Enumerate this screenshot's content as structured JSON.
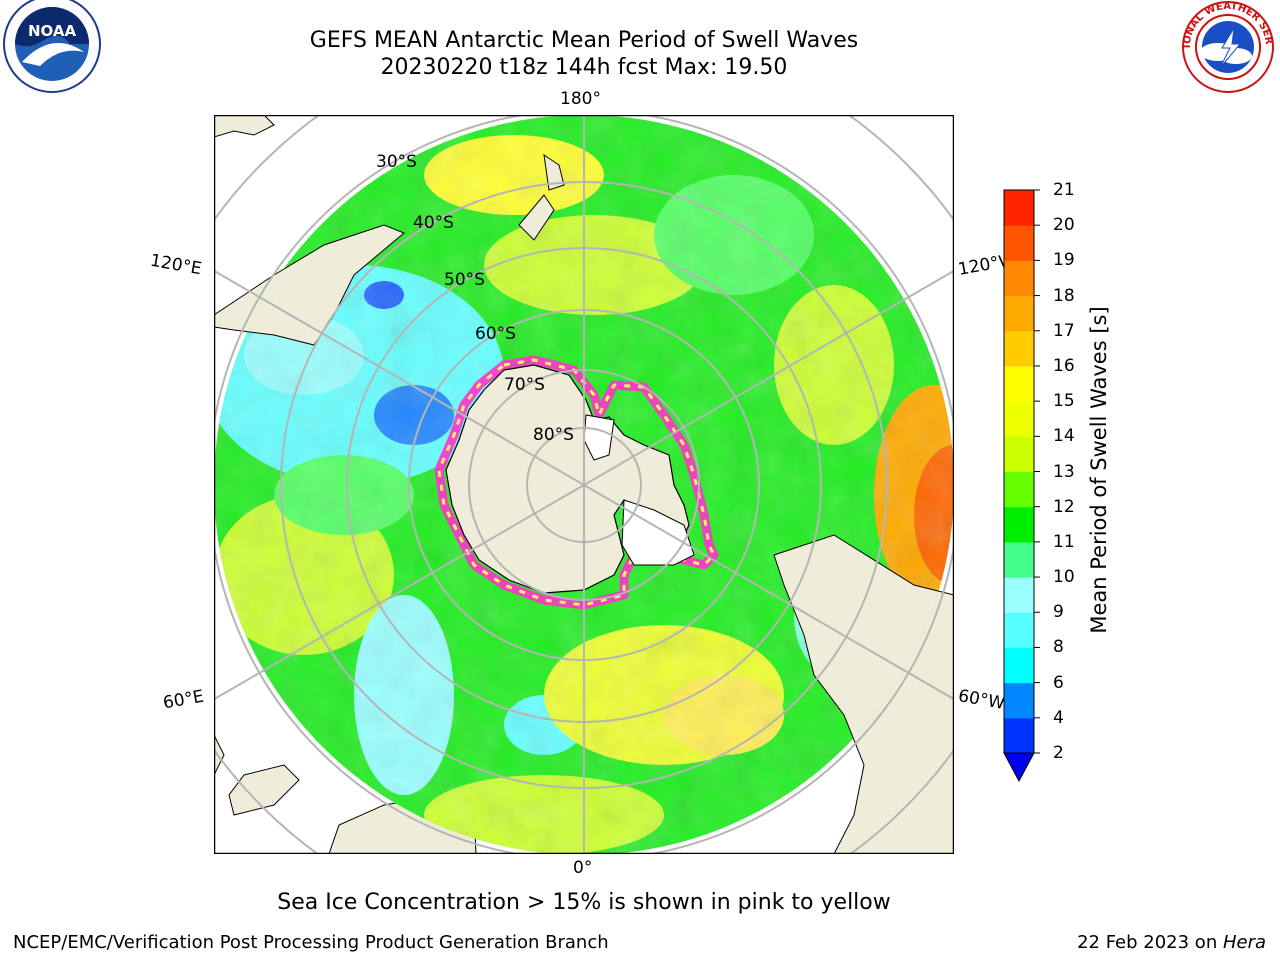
{
  "title": {
    "line1": "GEFS MEAN Antarctic Mean Period of Swell Waves",
    "line2": "20230220 t18z 144h fcst   Max: 19.50"
  },
  "map": {
    "projection": "south-polar-stereographic",
    "meridian_labels": [
      {
        "id": "lon-180",
        "text": "180°"
      },
      {
        "id": "lon-120e",
        "text": "120°E"
      },
      {
        "id": "lon-120w",
        "text": "120°W"
      },
      {
        "id": "lon-60e",
        "text": "60°E"
      },
      {
        "id": "lon-60w",
        "text": "60°W"
      },
      {
        "id": "lon-0",
        "text": "0°"
      }
    ],
    "parallel_labels": [
      "30°S",
      "40°S",
      "50°S",
      "60°S",
      "70°S",
      "80°S"
    ],
    "colors": {
      "land": "#efedd9",
      "ice": "#ffffff",
      "ice_edge": "#ff33cc",
      "grid": "#b5b5b5"
    }
  },
  "colorbar": {
    "label": "Mean Period of Swell Waves [s]",
    "ticks": [
      "2",
      "4",
      "6",
      "8",
      "9",
      "10",
      "11",
      "12",
      "13",
      "14",
      "15",
      "16",
      "17",
      "18",
      "19",
      "20",
      "21"
    ],
    "colors": [
      "#0033ff",
      "#0088ff",
      "#00ffff",
      "#55ffff",
      "#99ffff",
      "#44ff88",
      "#00ee00",
      "#66ff00",
      "#ccff00",
      "#eeff00",
      "#ffff00",
      "#ffcc00",
      "#ffaa00",
      "#ff8800",
      "#ff5500",
      "#ff2200"
    ],
    "extend_min_color": "#0000ee"
  },
  "footer_note": "Sea Ice Concentration > 15% is shown in pink to yellow",
  "credits": {
    "left": "NCEP/EMC/Verification Post Processing Product Generation Branch",
    "right_prefix": "22 Feb 2023 on ",
    "right_host": "Hera"
  },
  "logos": {
    "left": "NOAA",
    "right_ring": "NATIONAL WEATHER SERVICE"
  }
}
